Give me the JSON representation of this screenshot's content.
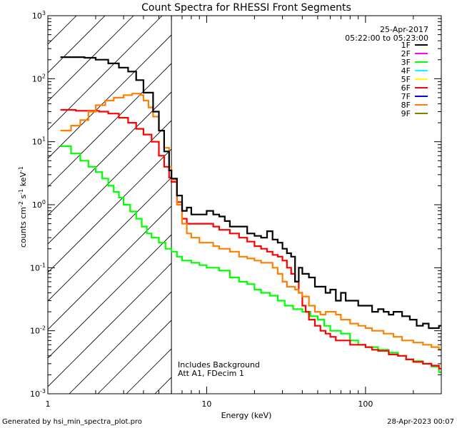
{
  "chart_data": {
    "type": "line",
    "title": "Count Spectra for RHESSI Front Segments",
    "xlabel": "Energy (keV)",
    "ylabel": "counts cm-2 s-1 keV-1",
    "xscale": "log",
    "yscale": "log",
    "xlim": [
      1,
      300
    ],
    "ylim": [
      0.001,
      1000
    ],
    "x_ticks": [
      {
        "value": 1,
        "label": "1"
      },
      {
        "value": 10,
        "label": "10"
      },
      {
        "value": 100,
        "label": "100"
      }
    ],
    "y_ticks": [
      {
        "value": 1000,
        "base": "10",
        "exp": "3"
      },
      {
        "value": 100,
        "base": "10",
        "exp": "2"
      },
      {
        "value": 10,
        "base": "10",
        "exp": "1"
      },
      {
        "value": 1,
        "base": "10",
        "exp": "0"
      },
      {
        "value": 0.1,
        "base": "10",
        "exp": "-1"
      },
      {
        "value": 0.01,
        "base": "10",
        "exp": "-2"
      },
      {
        "value": 0.001,
        "base": "10",
        "exp": "-3"
      }
    ],
    "date": "25-Apr-2017",
    "time_range": "05:22:00 to 05:23:00",
    "legend": [
      {
        "name": "1F",
        "color": "#000000"
      },
      {
        "name": "2F",
        "color": "#ff00ff"
      },
      {
        "name": "3F",
        "color": "#00ff00"
      },
      {
        "name": "4F",
        "color": "#00ffff"
      },
      {
        "name": "5F",
        "color": "#ffff00"
      },
      {
        "name": "6F",
        "color": "#ff0000"
      },
      {
        "name": "7F",
        "color": "#0000ff"
      },
      {
        "name": "8F",
        "color": "#ff8000"
      },
      {
        "name": "9F",
        "color": "#808000"
      }
    ],
    "excluded_region_keV": [
      1,
      6
    ],
    "annotation_lines": [
      "Includes Background",
      "Att A1, FDecim  1"
    ],
    "footer_left": "Generated by hsi_min_spectra_plot.pro",
    "footer_right": "28-Apr-2023 00:07",
    "series": [
      {
        "name": "1F",
        "color": "#000000",
        "points": [
          [
            1.2,
            220
          ],
          [
            1.7,
            215
          ],
          [
            2.0,
            200
          ],
          [
            2.4,
            175
          ],
          [
            2.8,
            150
          ],
          [
            3.2,
            130
          ],
          [
            3.6,
            95
          ],
          [
            4.0,
            60
          ],
          [
            4.6,
            30
          ],
          [
            5.0,
            15
          ],
          [
            5.4,
            7
          ],
          [
            5.8,
            3.5
          ],
          [
            6.0,
            2.6
          ],
          [
            6.5,
            1.4
          ],
          [
            7.0,
            0.8
          ],
          [
            7.5,
            0.9
          ],
          [
            8,
            0.7
          ],
          [
            9,
            0.7
          ],
          [
            10,
            0.8
          ],
          [
            11,
            0.7
          ],
          [
            12,
            0.65
          ],
          [
            13,
            0.55
          ],
          [
            14,
            0.45
          ],
          [
            16,
            0.45
          ],
          [
            18,
            0.35
          ],
          [
            20,
            0.32
          ],
          [
            22,
            0.3
          ],
          [
            24,
            0.38
          ],
          [
            26,
            0.28
          ],
          [
            28,
            0.25
          ],
          [
            30,
            0.2
          ],
          [
            32,
            0.17
          ],
          [
            34,
            0.15
          ],
          [
            36,
            0.06
          ],
          [
            38,
            0.1
          ],
          [
            40,
            0.08
          ],
          [
            44,
            0.07
          ],
          [
            48,
            0.05
          ],
          [
            52,
            0.05
          ],
          [
            56,
            0.04
          ],
          [
            60,
            0.045
          ],
          [
            65,
            0.03
          ],
          [
            70,
            0.04
          ],
          [
            75,
            0.03
          ],
          [
            80,
            0.03
          ],
          [
            90,
            0.025
          ],
          [
            100,
            0.025
          ],
          [
            110,
            0.02
          ],
          [
            120,
            0.022
          ],
          [
            130,
            0.02
          ],
          [
            140,
            0.018
          ],
          [
            150,
            0.02
          ],
          [
            170,
            0.017
          ],
          [
            190,
            0.015
          ],
          [
            210,
            0.012
          ],
          [
            230,
            0.013
          ],
          [
            250,
            0.011
          ],
          [
            270,
            0.011
          ],
          [
            290,
            0.012
          ]
        ]
      },
      {
        "name": "3F",
        "color": "#00ff00",
        "points": [
          [
            1.2,
            8.5
          ],
          [
            1.4,
            6.5
          ],
          [
            1.6,
            5
          ],
          [
            1.8,
            4
          ],
          [
            2.0,
            3.3
          ],
          [
            2.2,
            2.6
          ],
          [
            2.4,
            2
          ],
          [
            2.6,
            1.6
          ],
          [
            2.8,
            1.3
          ],
          [
            3.0,
            1.0
          ],
          [
            3.3,
            0.78
          ],
          [
            3.6,
            0.6
          ],
          [
            3.9,
            0.45
          ],
          [
            4.2,
            0.35
          ],
          [
            4.5,
            0.3
          ],
          [
            5.0,
            0.25
          ],
          [
            5.5,
            0.2
          ],
          [
            6.0,
            0.18
          ],
          [
            6.5,
            0.15
          ],
          [
            7,
            0.13
          ],
          [
            8,
            0.12
          ],
          [
            9,
            0.11
          ],
          [
            10,
            0.1
          ],
          [
            12,
            0.09
          ],
          [
            14,
            0.07
          ],
          [
            16,
            0.06
          ],
          [
            18,
            0.055
          ],
          [
            20,
            0.045
          ],
          [
            22,
            0.04
          ],
          [
            25,
            0.036
          ],
          [
            28,
            0.03
          ],
          [
            31,
            0.025
          ],
          [
            35,
            0.022
          ],
          [
            40,
            0.02
          ],
          [
            45,
            0.017
          ],
          [
            50,
            0.015
          ],
          [
            55,
            0.012
          ],
          [
            60,
            0.01
          ],
          [
            70,
            0.009
          ],
          [
            80,
            0.007
          ],
          [
            90,
            0.006
          ],
          [
            100,
            0.0055
          ],
          [
            120,
            0.005
          ],
          [
            140,
            0.0045
          ],
          [
            160,
            0.004
          ],
          [
            180,
            0.0035
          ],
          [
            200,
            0.0033
          ],
          [
            230,
            0.003
          ],
          [
            260,
            0.0027
          ],
          [
            290,
            0.0022
          ]
        ]
      },
      {
        "name": "6F",
        "color": "#ff0000",
        "points": [
          [
            1.2,
            32
          ],
          [
            1.5,
            31
          ],
          [
            1.8,
            31
          ],
          [
            2.1,
            30
          ],
          [
            2.4,
            28
          ],
          [
            2.8,
            24
          ],
          [
            3.2,
            20
          ],
          [
            3.6,
            16
          ],
          [
            4.0,
            13
          ],
          [
            4.5,
            10
          ],
          [
            5.0,
            6
          ],
          [
            5.4,
            4
          ],
          [
            5.8,
            2.7
          ],
          [
            6.0,
            2.3
          ],
          [
            6.5,
            1.1
          ],
          [
            7.0,
            0.6
          ],
          [
            7.5,
            0.5
          ],
          [
            8,
            0.5
          ],
          [
            9,
            0.5
          ],
          [
            10,
            0.5
          ],
          [
            11,
            0.45
          ],
          [
            12,
            0.4
          ],
          [
            14,
            0.35
          ],
          [
            16,
            0.3
          ],
          [
            18,
            0.26
          ],
          [
            20,
            0.22
          ],
          [
            22,
            0.2
          ],
          [
            24,
            0.18
          ],
          [
            26,
            0.16
          ],
          [
            28,
            0.15
          ],
          [
            30,
            0.13
          ],
          [
            32,
            0.1
          ],
          [
            34,
            0.08
          ],
          [
            36,
            0.06
          ],
          [
            38,
            0.04
          ],
          [
            40,
            0.025
          ],
          [
            42,
            0.02
          ],
          [
            44,
            0.015
          ],
          [
            48,
            0.012
          ],
          [
            52,
            0.01
          ],
          [
            56,
            0.009
          ],
          [
            60,
            0.008
          ],
          [
            65,
            0.007
          ],
          [
            70,
            0.007
          ],
          [
            80,
            0.006
          ],
          [
            90,
            0.006
          ],
          [
            100,
            0.0055
          ],
          [
            110,
            0.005
          ],
          [
            120,
            0.0048
          ],
          [
            140,
            0.0042
          ],
          [
            160,
            0.004
          ],
          [
            180,
            0.0035
          ],
          [
            200,
            0.0032
          ],
          [
            230,
            0.003
          ],
          [
            260,
            0.0028
          ],
          [
            290,
            0.0025
          ]
        ]
      },
      {
        "name": "8F",
        "color": "#ff8000",
        "points": [
          [
            1.2,
            15
          ],
          [
            1.4,
            18
          ],
          [
            1.6,
            22
          ],
          [
            1.8,
            30
          ],
          [
            2.0,
            38
          ],
          [
            2.3,
            45
          ],
          [
            2.6,
            50
          ],
          [
            3.0,
            55
          ],
          [
            3.4,
            58
          ],
          [
            3.8,
            55
          ],
          [
            4.0,
            45
          ],
          [
            4.3,
            35
          ],
          [
            4.6,
            25
          ],
          [
            5.0,
            15
          ],
          [
            5.4,
            8
          ],
          [
            5.8,
            4
          ],
          [
            6.0,
            2.5
          ],
          [
            6.5,
            1.0
          ],
          [
            7.0,
            0.5
          ],
          [
            7.5,
            0.35
          ],
          [
            8,
            0.3
          ],
          [
            9,
            0.25
          ],
          [
            10,
            0.25
          ],
          [
            11,
            0.22
          ],
          [
            12,
            0.2
          ],
          [
            14,
            0.18
          ],
          [
            16,
            0.15
          ],
          [
            18,
            0.14
          ],
          [
            20,
            0.13
          ],
          [
            22,
            0.12
          ],
          [
            24,
            0.12
          ],
          [
            26,
            0.1
          ],
          [
            28,
            0.08
          ],
          [
            30,
            0.06
          ],
          [
            32,
            0.05
          ],
          [
            34,
            0.05
          ],
          [
            36,
            0.045
          ],
          [
            38,
            0.04
          ],
          [
            40,
            0.035
          ],
          [
            44,
            0.025
          ],
          [
            48,
            0.02
          ],
          [
            52,
            0.018
          ],
          [
            56,
            0.02
          ],
          [
            60,
            0.02
          ],
          [
            65,
            0.018
          ],
          [
            70,
            0.015
          ],
          [
            80,
            0.013
          ],
          [
            90,
            0.012
          ],
          [
            100,
            0.011
          ],
          [
            110,
            0.01
          ],
          [
            130,
            0.009
          ],
          [
            150,
            0.008
          ],
          [
            170,
            0.007
          ],
          [
            200,
            0.0065
          ],
          [
            230,
            0.006
          ],
          [
            260,
            0.0055
          ],
          [
            290,
            0.005
          ]
        ]
      }
    ]
  }
}
